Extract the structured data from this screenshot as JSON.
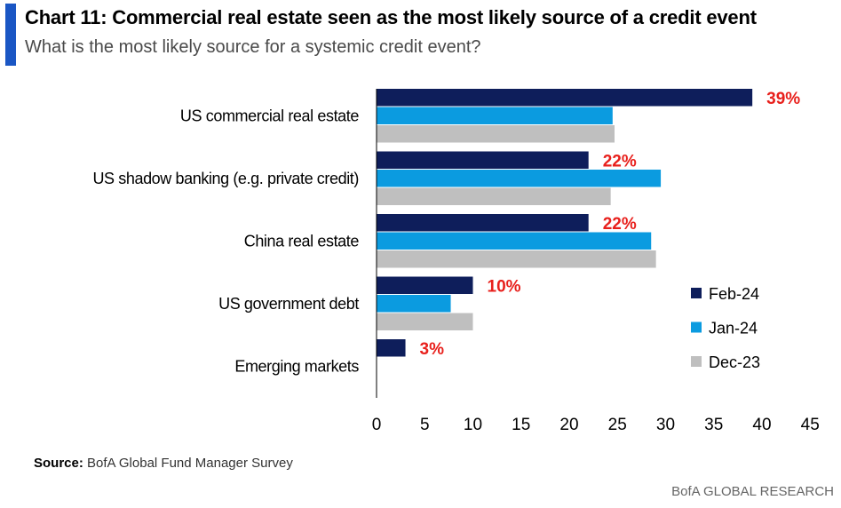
{
  "header": {
    "title": "Chart 11: Commercial real estate seen as the most likely source of a credit event",
    "subtitle": "What is the most likely source for a systemic credit event?",
    "accent_color": "#1a56c4"
  },
  "chart_data": {
    "type": "bar",
    "orientation": "horizontal",
    "categories": [
      "US commercial real estate",
      "US shadow banking (e.g. private credit)",
      "China real estate",
      "US government debt",
      "Emerging markets"
    ],
    "series": [
      {
        "name": "Feb-24",
        "color": "#0e1e5b",
        "values": [
          39,
          22,
          22,
          10,
          3
        ]
      },
      {
        "name": "Jan-24",
        "color": "#0b9be0",
        "values": [
          24.5,
          29.5,
          28.5,
          7.7,
          0
        ]
      },
      {
        "name": "Dec-23",
        "color": "#bfbfbf",
        "values": [
          24.7,
          24.3,
          29,
          10,
          0
        ]
      }
    ],
    "data_labels": [
      "39%",
      "22%",
      "22%",
      "10%",
      "3%"
    ],
    "data_label_color": "#e8201c",
    "xlim": [
      0,
      45
    ],
    "xticks": [
      "0",
      "5",
      "10",
      "15",
      "20",
      "25",
      "30",
      "35",
      "40",
      "45"
    ],
    "legend": [
      "Feb-24",
      "Jan-24",
      "Dec-23"
    ],
    "legend_position": "lower-right",
    "grid": false
  },
  "footer": {
    "source_label": "Source:",
    "source_text": " BofA Global Fund Manager Survey",
    "brand": "BofA GLOBAL RESEARCH"
  }
}
